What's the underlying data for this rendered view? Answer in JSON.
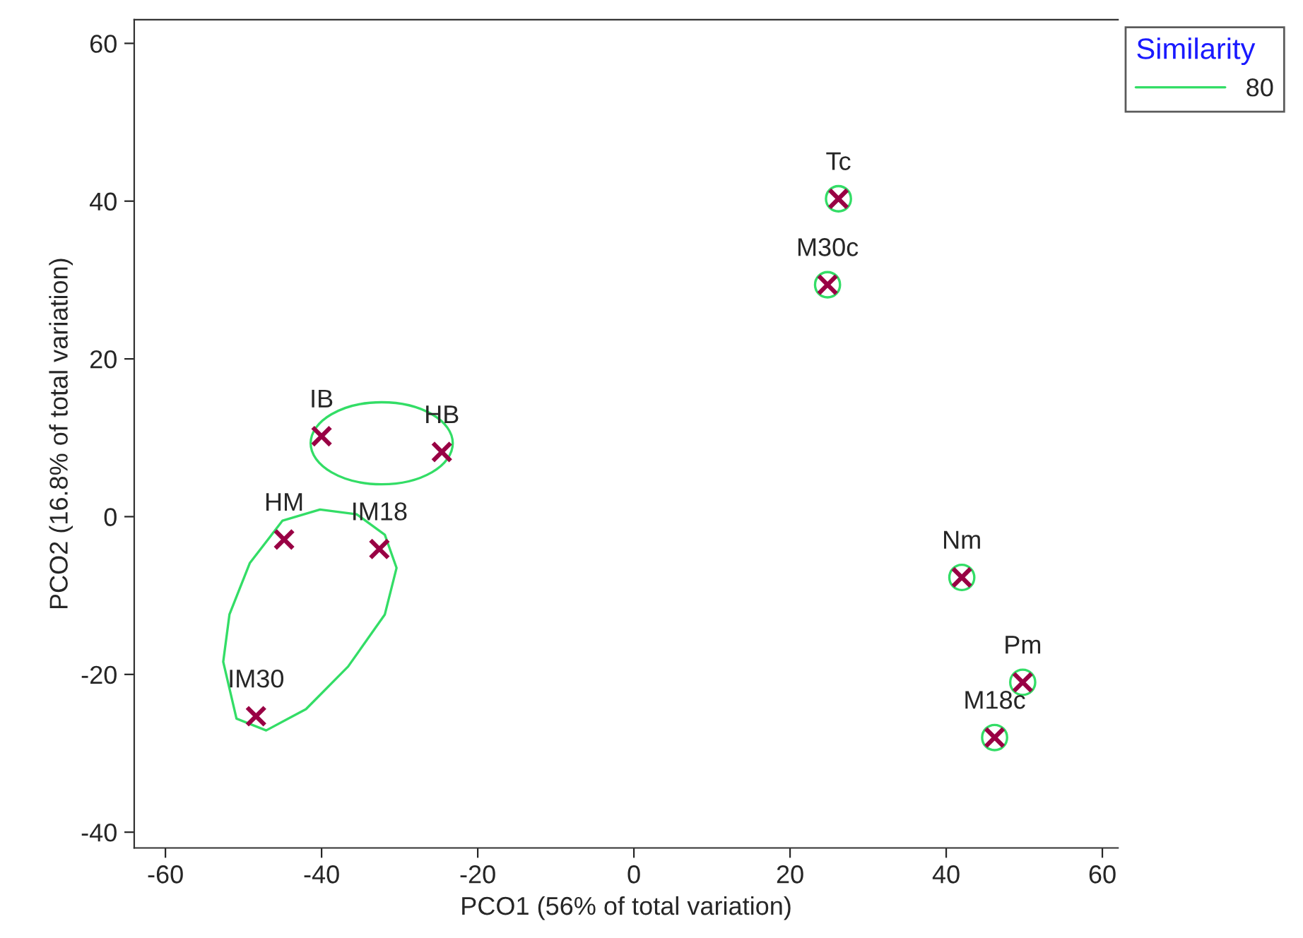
{
  "chart_data": {
    "type": "scatter",
    "xlabel": "PCO1 (56% of total variation)",
    "ylabel": "PCO2 (16.8% of total variation)",
    "legend_title": "Similarity",
    "legend": "top right",
    "grid": false,
    "xlim": [
      -64,
      62
    ],
    "xticks": [
      -60,
      -40,
      -20,
      0,
      20,
      40,
      60
    ],
    "ylim": [
      -42,
      63
    ],
    "yticks": [
      -40,
      -20,
      0,
      20,
      40,
      60
    ],
    "series": [
      {
        "marker": "cross",
        "color": "#990044",
        "x": [
          -40.0,
          -24.6,
          -44.8,
          -32.6,
          -48.4,
          26.2,
          24.8,
          42.0,
          49.8,
          46.2
        ],
        "values": [
          10.2,
          8.2,
          -2.9,
          -4.1,
          -25.3,
          40.3,
          29.4,
          -7.7,
          -21.0,
          -28.0
        ]
      },
      {
        "type": "line",
        "name": "80",
        "color": "#33dd66"
      }
    ],
    "annotations": [
      {
        "text": "IB",
        "x": -40.0,
        "y": 10.2
      },
      {
        "text": "HB",
        "x": -24.6,
        "y": 8.2
      },
      {
        "text": "HM",
        "x": -44.8,
        "y": -2.9
      },
      {
        "text": "IM18",
        "x": -32.6,
        "y": -4.1
      },
      {
        "text": "IM30",
        "x": -48.4,
        "y": -25.3
      },
      {
        "text": "Tc",
        "x": 26.2,
        "y": 40.3
      },
      {
        "text": "M30c",
        "x": 24.8,
        "y": 29.4
      },
      {
        "text": "Nm",
        "x": 42.0,
        "y": -7.7
      },
      {
        "text": "Pm",
        "x": 49.8,
        "y": -21.0
      },
      {
        "text": "M18c",
        "x": 46.2,
        "y": -28.0
      }
    ]
  }
}
